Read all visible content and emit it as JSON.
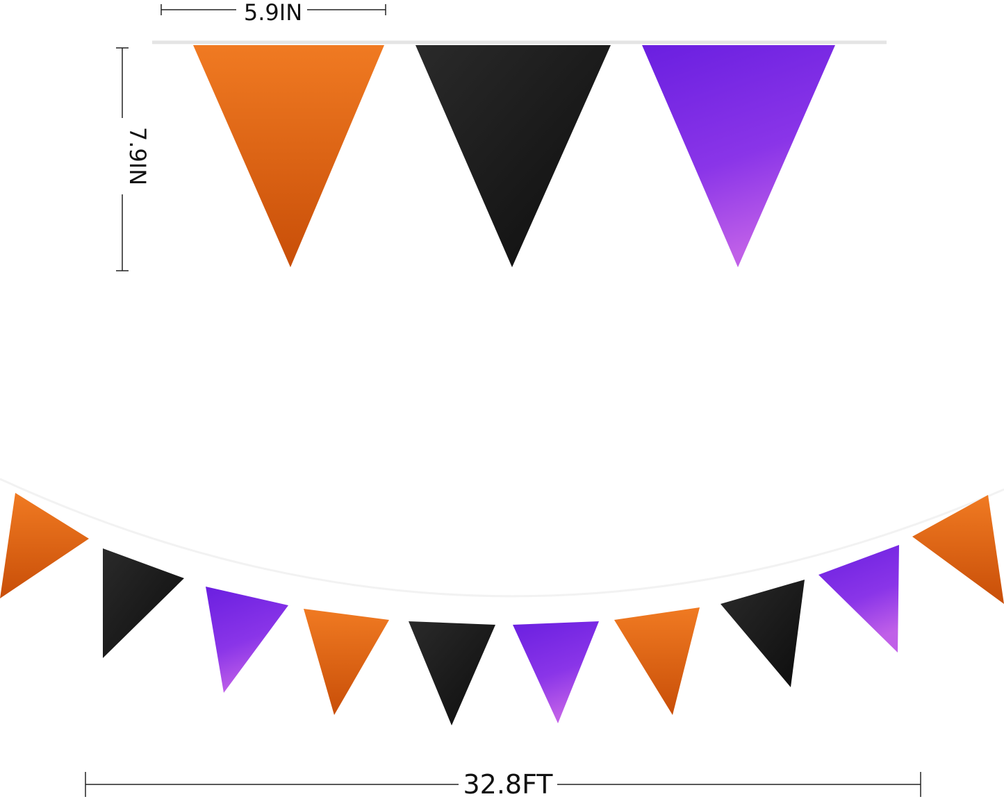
{
  "dimensions": {
    "flag_width": "5.9IN",
    "flag_height": "7.9IN",
    "total_length": "32.8FT"
  },
  "colors": {
    "orange": "#e8640f",
    "black": "#1c1c1c",
    "purple": "#7a22e0",
    "string": "#e6e6e6",
    "dimension_line": "#222222"
  },
  "top_flags": [
    "orange",
    "black",
    "purple"
  ],
  "bottom_flags": [
    "orange",
    "black",
    "purple",
    "orange",
    "black",
    "purple",
    "orange",
    "black",
    "purple",
    "orange"
  ]
}
